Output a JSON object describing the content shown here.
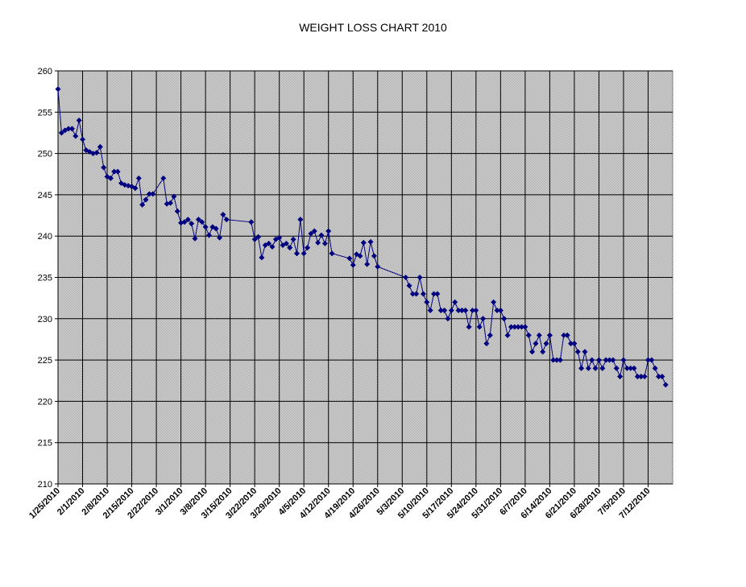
{
  "chart_data": {
    "type": "line",
    "title": "WEIGHT LOSS CHART 2010",
    "xlabel": "",
    "ylabel": "",
    "ylim": [
      210,
      260
    ],
    "y_ticks": [
      210,
      215,
      220,
      225,
      230,
      235,
      240,
      245,
      250,
      255,
      260
    ],
    "x_range": [
      "2010-01-25",
      "2010-07-19"
    ],
    "x_tick_labels": [
      "1/25/2010",
      "2/1/2010",
      "2/8/2010",
      "2/15/2010",
      "2/22/2010",
      "3/1/2010",
      "3/8/2010",
      "3/15/2010",
      "3/22/2010",
      "3/29/2010",
      "4/5/2010",
      "4/12/2010",
      "4/19/2010",
      "4/26/2010",
      "5/3/2010",
      "5/10/2010",
      "5/17/2010",
      "5/24/2010",
      "5/31/2010",
      "6/7/2010",
      "6/14/2010",
      "6/21/2010",
      "6/28/2010",
      "7/5/2010",
      "7/12/2010"
    ],
    "grid": true,
    "legend": "none",
    "colors": {
      "series": "#000080",
      "plot_background": "#c0c0c0",
      "grid": "#000000"
    },
    "series": [
      {
        "points": [
          [
            "2010-01-25",
            257.8
          ],
          [
            "2010-01-26",
            252.5
          ],
          [
            "2010-01-27",
            252.8
          ],
          [
            "2010-01-28",
            253.0
          ],
          [
            "2010-01-29",
            253.0
          ],
          [
            "2010-01-30",
            252.1
          ],
          [
            "2010-01-31",
            254.0
          ],
          [
            "2010-02-01",
            251.7
          ],
          [
            "2010-02-02",
            250.4
          ],
          [
            "2010-02-03",
            250.2
          ],
          [
            "2010-02-04",
            250.0
          ],
          [
            "2010-02-05",
            250.1
          ],
          [
            "2010-02-06",
            250.8
          ],
          [
            "2010-02-07",
            248.3
          ],
          [
            "2010-02-08",
            247.2
          ],
          [
            "2010-02-09",
            247.0
          ],
          [
            "2010-02-10",
            247.8
          ],
          [
            "2010-02-11",
            247.8
          ],
          [
            "2010-02-12",
            246.4
          ],
          [
            "2010-02-13",
            246.2
          ],
          [
            "2010-02-14",
            246.1
          ],
          [
            "2010-02-15",
            246.0
          ],
          [
            "2010-02-16",
            245.8
          ],
          [
            "2010-02-17",
            247.0
          ],
          [
            "2010-02-18",
            243.8
          ],
          [
            "2010-02-19",
            244.4
          ],
          [
            "2010-02-20",
            245.1
          ],
          [
            "2010-02-21",
            245.1
          ],
          [
            "2010-02-24",
            247.0
          ],
          [
            "2010-02-25",
            243.9
          ],
          [
            "2010-02-26",
            244.0
          ],
          [
            "2010-02-27",
            244.8
          ],
          [
            "2010-02-28",
            243.0
          ],
          [
            "2010-03-01",
            241.6
          ],
          [
            "2010-03-02",
            241.7
          ],
          [
            "2010-03-03",
            242.0
          ],
          [
            "2010-03-04",
            241.5
          ],
          [
            "2010-03-05",
            239.7
          ],
          [
            "2010-03-06",
            242.0
          ],
          [
            "2010-03-07",
            241.7
          ],
          [
            "2010-03-08",
            241.1
          ],
          [
            "2010-03-09",
            240.1
          ],
          [
            "2010-03-10",
            241.1
          ],
          [
            "2010-03-11",
            240.9
          ],
          [
            "2010-03-12",
            239.8
          ],
          [
            "2010-03-13",
            242.6
          ],
          [
            "2010-03-14",
            242.0
          ],
          [
            "2010-03-21",
            241.7
          ],
          [
            "2010-03-22",
            239.6
          ],
          [
            "2010-03-23",
            239.9
          ],
          [
            "2010-03-24",
            237.4
          ],
          [
            "2010-03-25",
            238.9
          ],
          [
            "2010-03-26",
            239.1
          ],
          [
            "2010-03-27",
            238.7
          ],
          [
            "2010-03-28",
            239.6
          ],
          [
            "2010-03-29",
            239.8
          ],
          [
            "2010-03-30",
            238.9
          ],
          [
            "2010-03-31",
            239.1
          ],
          [
            "2010-04-01",
            238.6
          ],
          [
            "2010-04-02",
            239.6
          ],
          [
            "2010-04-03",
            237.9
          ],
          [
            "2010-04-04",
            242.0
          ],
          [
            "2010-04-05",
            237.9
          ],
          [
            "2010-04-06",
            238.6
          ],
          [
            "2010-04-07",
            240.3
          ],
          [
            "2010-04-08",
            240.6
          ],
          [
            "2010-04-09",
            239.2
          ],
          [
            "2010-04-10",
            240.1
          ],
          [
            "2010-04-11",
            239.1
          ],
          [
            "2010-04-12",
            240.6
          ],
          [
            "2010-04-13",
            237.9
          ],
          [
            "2010-04-18",
            237.3
          ],
          [
            "2010-04-19",
            236.5
          ],
          [
            "2010-04-20",
            237.8
          ],
          [
            "2010-04-21",
            237.6
          ],
          [
            "2010-04-22",
            239.2
          ],
          [
            "2010-04-23",
            236.6
          ],
          [
            "2010-04-24",
            239.3
          ],
          [
            "2010-04-25",
            237.6
          ],
          [
            "2010-04-26",
            236.3
          ],
          [
            "2010-05-04",
            235.0
          ],
          [
            "2010-05-05",
            234.0
          ],
          [
            "2010-05-06",
            233.0
          ],
          [
            "2010-05-07",
            233.0
          ],
          [
            "2010-05-08",
            235.0
          ],
          [
            "2010-05-09",
            233.0
          ],
          [
            "2010-05-10",
            232.0
          ],
          [
            "2010-05-11",
            231.0
          ],
          [
            "2010-05-12",
            233.0
          ],
          [
            "2010-05-13",
            233.0
          ],
          [
            "2010-05-14",
            231.0
          ],
          [
            "2010-05-15",
            231.0
          ],
          [
            "2010-05-16",
            230.0
          ],
          [
            "2010-05-17",
            231.0
          ],
          [
            "2010-05-18",
            232.0
          ],
          [
            "2010-05-19",
            231.0
          ],
          [
            "2010-05-20",
            231.0
          ],
          [
            "2010-05-21",
            231.0
          ],
          [
            "2010-05-22",
            229.0
          ],
          [
            "2010-05-23",
            231.0
          ],
          [
            "2010-05-24",
            231.0
          ],
          [
            "2010-05-25",
            229.0
          ],
          [
            "2010-05-26",
            230.0
          ],
          [
            "2010-05-27",
            227.0
          ],
          [
            "2010-05-28",
            228.0
          ],
          [
            "2010-05-29",
            232.0
          ],
          [
            "2010-05-30",
            231.0
          ],
          [
            "2010-05-31",
            231.0
          ],
          [
            "2010-06-01",
            230.0
          ],
          [
            "2010-06-02",
            228.0
          ],
          [
            "2010-06-03",
            229.0
          ],
          [
            "2010-06-04",
            229.0
          ],
          [
            "2010-06-05",
            229.0
          ],
          [
            "2010-06-06",
            229.0
          ],
          [
            "2010-06-07",
            229.0
          ],
          [
            "2010-06-08",
            228.0
          ],
          [
            "2010-06-09",
            226.0
          ],
          [
            "2010-06-10",
            227.0
          ],
          [
            "2010-06-11",
            228.0
          ],
          [
            "2010-06-12",
            226.0
          ],
          [
            "2010-06-13",
            227.0
          ],
          [
            "2010-06-14",
            228.0
          ],
          [
            "2010-06-15",
            225.0
          ],
          [
            "2010-06-16",
            225.0
          ],
          [
            "2010-06-17",
            225.0
          ],
          [
            "2010-06-18",
            228.0
          ],
          [
            "2010-06-19",
            228.0
          ],
          [
            "2010-06-20",
            227.0
          ],
          [
            "2010-06-21",
            227.0
          ],
          [
            "2010-06-22",
            226.0
          ],
          [
            "2010-06-23",
            224.0
          ],
          [
            "2010-06-24",
            226.0
          ],
          [
            "2010-06-25",
            224.0
          ],
          [
            "2010-06-26",
            225.0
          ],
          [
            "2010-06-27",
            224.0
          ],
          [
            "2010-06-28",
            225.0
          ],
          [
            "2010-06-29",
            224.0
          ],
          [
            "2010-06-30",
            225.0
          ],
          [
            "2010-07-01",
            225.0
          ],
          [
            "2010-07-02",
            225.0
          ],
          [
            "2010-07-03",
            224.0
          ],
          [
            "2010-07-04",
            223.0
          ],
          [
            "2010-07-05",
            225.0
          ],
          [
            "2010-07-06",
            224.0
          ],
          [
            "2010-07-07",
            224.0
          ],
          [
            "2010-07-08",
            224.0
          ],
          [
            "2010-07-09",
            223.0
          ],
          [
            "2010-07-10",
            223.0
          ],
          [
            "2010-07-11",
            223.0
          ],
          [
            "2010-07-12",
            225.0
          ],
          [
            "2010-07-13",
            225.0
          ],
          [
            "2010-07-14",
            224.0
          ],
          [
            "2010-07-15",
            223.0
          ],
          [
            "2010-07-16",
            223.0
          ],
          [
            "2010-07-17",
            222.0
          ]
        ]
      }
    ]
  }
}
